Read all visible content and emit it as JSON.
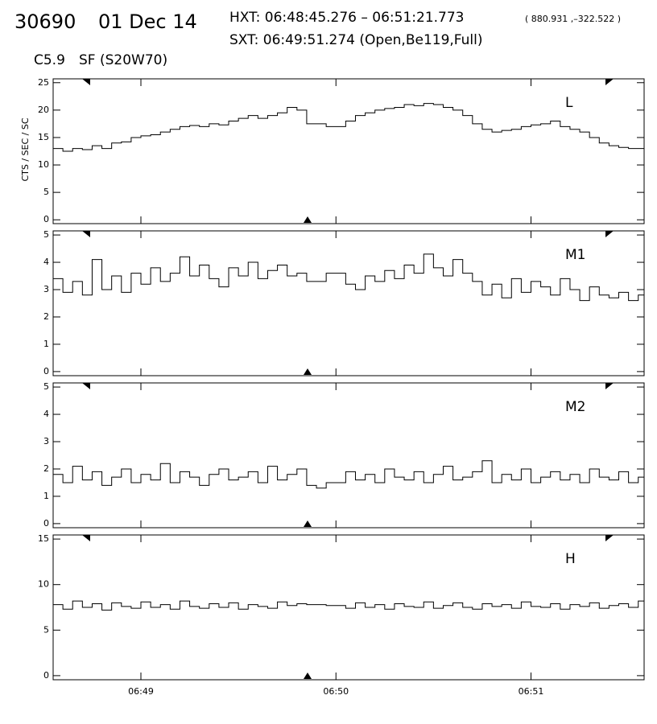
{
  "header": {
    "id": "30690",
    "date": "01 Dec 14",
    "hxt": "HXT: 06:48:45.276 – 06:51:21.773",
    "coords": "( 880.931 ,–322.522 )",
    "sxt": "SXT: 06:49:51.274 (Open,Be119,Full)",
    "goes": "C5.9",
    "flare": "SF (S20W70)"
  },
  "chart_data": [
    {
      "type": "line",
      "step": true,
      "label": "L",
      "ylabel": "CTS / SEC / SC",
      "color": "#000000",
      "ylim": [
        -0.7,
        25.7
      ],
      "yticks": [
        0,
        5,
        10,
        15,
        20,
        25
      ],
      "xlim": [
        48.55,
        51.58
      ],
      "xticks": [
        {
          "value": 49,
          "label": "06:49"
        },
        {
          "value": 50,
          "label": "06:50"
        },
        {
          "value": 51,
          "label": "06:51"
        }
      ],
      "x": [
        48.55,
        48.6,
        48.65,
        48.7,
        48.75,
        48.8,
        48.85,
        48.9,
        48.95,
        49,
        49.05,
        49.1,
        49.15,
        49.2,
        49.25,
        49.3,
        49.35,
        49.4,
        49.45,
        49.5,
        49.55,
        49.6,
        49.65,
        49.7,
        49.75,
        49.8,
        49.85,
        49.9,
        49.95,
        50,
        50.05,
        50.1,
        50.15,
        50.2,
        50.25,
        50.3,
        50.35,
        50.4,
        50.45,
        50.5,
        50.55,
        50.6,
        50.65,
        50.7,
        50.75,
        50.8,
        50.85,
        50.9,
        50.95,
        51,
        51.05,
        51.1,
        51.15,
        51.2,
        51.25,
        51.3,
        51.35,
        51.4,
        51.45,
        51.5,
        51.55
      ],
      "values": [
        13,
        12.5,
        13,
        12.8,
        13.5,
        13,
        14,
        14.2,
        15,
        15.3,
        15.5,
        16,
        16.5,
        17,
        17.2,
        17,
        17.5,
        17.3,
        18,
        18.5,
        19,
        18.5,
        19,
        19.5,
        20.5,
        20,
        17.5,
        17.5,
        17,
        17,
        18,
        19,
        19.5,
        20,
        20.3,
        20.5,
        21,
        20.8,
        21.2,
        21,
        20.5,
        20,
        19,
        17.5,
        16.5,
        16,
        16.3,
        16.5,
        17,
        17.3,
        17.5,
        18,
        17,
        16.5,
        16,
        15,
        14,
        13.5,
        13.2,
        13,
        13
      ]
    },
    {
      "type": "line",
      "step": true,
      "label": "M1",
      "color": "#000000",
      "ylim": [
        -0.15,
        5.15
      ],
      "yticks": [
        0,
        1,
        2,
        3,
        4,
        5
      ],
      "xlim": [
        48.55,
        51.58
      ],
      "x": [
        48.55,
        48.6,
        48.65,
        48.7,
        48.75,
        48.8,
        48.85,
        48.9,
        48.95,
        49,
        49.05,
        49.1,
        49.15,
        49.2,
        49.25,
        49.3,
        49.35,
        49.4,
        49.45,
        49.5,
        49.55,
        49.6,
        49.65,
        49.7,
        49.75,
        49.8,
        49.85,
        49.9,
        49.95,
        50,
        50.05,
        50.1,
        50.15,
        50.2,
        50.25,
        50.3,
        50.35,
        50.4,
        50.45,
        50.5,
        50.55,
        50.6,
        50.65,
        50.7,
        50.75,
        50.8,
        50.85,
        50.9,
        50.95,
        51,
        51.05,
        51.1,
        51.15,
        51.2,
        51.25,
        51.3,
        51.35,
        51.4,
        51.45,
        51.5,
        51.55
      ],
      "values": [
        3.4,
        2.9,
        3.3,
        2.8,
        4.1,
        3.0,
        3.5,
        2.9,
        3.6,
        3.2,
        3.8,
        3.3,
        3.6,
        4.2,
        3.5,
        3.9,
        3.4,
        3.1,
        3.8,
        3.5,
        4.0,
        3.4,
        3.7,
        3.9,
        3.5,
        3.6,
        3.3,
        3.3,
        3.6,
        3.6,
        3.2,
        3.0,
        3.5,
        3.3,
        3.7,
        3.4,
        3.9,
        3.6,
        4.3,
        3.8,
        3.5,
        4.1,
        3.6,
        3.3,
        2.8,
        3.2,
        2.7,
        3.4,
        2.9,
        3.3,
        3.1,
        2.8,
        3.4,
        3.0,
        2.6,
        3.1,
        2.8,
        2.7,
        2.9,
        2.6,
        2.8
      ]
    },
    {
      "type": "line",
      "step": true,
      "label": "M2",
      "color": "#000000",
      "ylim": [
        -0.15,
        5.15
      ],
      "yticks": [
        0,
        1,
        2,
        3,
        4,
        5
      ],
      "xlim": [
        48.55,
        51.58
      ],
      "x": [
        48.55,
        48.6,
        48.65,
        48.7,
        48.75,
        48.8,
        48.85,
        48.9,
        48.95,
        49,
        49.05,
        49.1,
        49.15,
        49.2,
        49.25,
        49.3,
        49.35,
        49.4,
        49.45,
        49.5,
        49.55,
        49.6,
        49.65,
        49.7,
        49.75,
        49.8,
        49.85,
        49.9,
        49.95,
        50,
        50.05,
        50.1,
        50.15,
        50.2,
        50.25,
        50.3,
        50.35,
        50.4,
        50.45,
        50.5,
        50.55,
        50.6,
        50.65,
        50.7,
        50.75,
        50.8,
        50.85,
        50.9,
        50.95,
        51,
        51.05,
        51.1,
        51.15,
        51.2,
        51.25,
        51.3,
        51.35,
        51.4,
        51.45,
        51.5,
        51.55
      ],
      "values": [
        1.8,
        1.5,
        2.1,
        1.6,
        1.9,
        1.4,
        1.7,
        2.0,
        1.5,
        1.8,
        1.6,
        2.2,
        1.5,
        1.9,
        1.7,
        1.4,
        1.8,
        2.0,
        1.6,
        1.7,
        1.9,
        1.5,
        2.1,
        1.6,
        1.8,
        2.0,
        1.4,
        1.3,
        1.5,
        1.5,
        1.9,
        1.6,
        1.8,
        1.5,
        2.0,
        1.7,
        1.6,
        1.9,
        1.5,
        1.8,
        2.1,
        1.6,
        1.7,
        1.9,
        2.3,
        1.5,
        1.8,
        1.6,
        2.0,
        1.5,
        1.7,
        1.9,
        1.6,
        1.8,
        1.5,
        2.0,
        1.7,
        1.6,
        1.9,
        1.5,
        1.7
      ]
    },
    {
      "type": "line",
      "step": true,
      "label": "H",
      "color": "#000000",
      "ylim": [
        -0.45,
        15.45
      ],
      "yticks": [
        0,
        5,
        10,
        15
      ],
      "xlim": [
        48.55,
        51.58
      ],
      "xticks": [
        {
          "value": 49,
          "label": "06:49"
        },
        {
          "value": 50,
          "label": "06:50"
        },
        {
          "value": 51,
          "label": "06:51"
        }
      ],
      "x": [
        48.55,
        48.6,
        48.65,
        48.7,
        48.75,
        48.8,
        48.85,
        48.9,
        48.95,
        49,
        49.05,
        49.1,
        49.15,
        49.2,
        49.25,
        49.3,
        49.35,
        49.4,
        49.45,
        49.5,
        49.55,
        49.6,
        49.65,
        49.7,
        49.75,
        49.8,
        49.85,
        49.9,
        49.95,
        50,
        50.05,
        50.1,
        50.15,
        50.2,
        50.25,
        50.3,
        50.35,
        50.4,
        50.45,
        50.5,
        50.55,
        50.6,
        50.65,
        50.7,
        50.75,
        50.8,
        50.85,
        50.9,
        50.95,
        51,
        51.05,
        51.1,
        51.15,
        51.2,
        51.25,
        51.3,
        51.35,
        51.4,
        51.45,
        51.5,
        51.55
      ],
      "values": [
        7.8,
        7.3,
        8.2,
        7.5,
        7.9,
        7.2,
        8.0,
        7.6,
        7.4,
        8.1,
        7.5,
        7.8,
        7.3,
        8.2,
        7.6,
        7.4,
        7.9,
        7.5,
        8.0,
        7.3,
        7.8,
        7.6,
        7.4,
        8.1,
        7.7,
        7.9,
        7.8,
        7.8,
        7.7,
        7.7,
        7.4,
        8.0,
        7.5,
        7.8,
        7.3,
        7.9,
        7.6,
        7.5,
        8.1,
        7.4,
        7.7,
        8.0,
        7.5,
        7.3,
        7.9,
        7.6,
        7.8,
        7.4,
        8.1,
        7.6,
        7.5,
        7.9,
        7.3,
        7.8,
        7.6,
        8.0,
        7.4,
        7.7,
        7.9,
        7.5,
        8.2
      ]
    }
  ]
}
